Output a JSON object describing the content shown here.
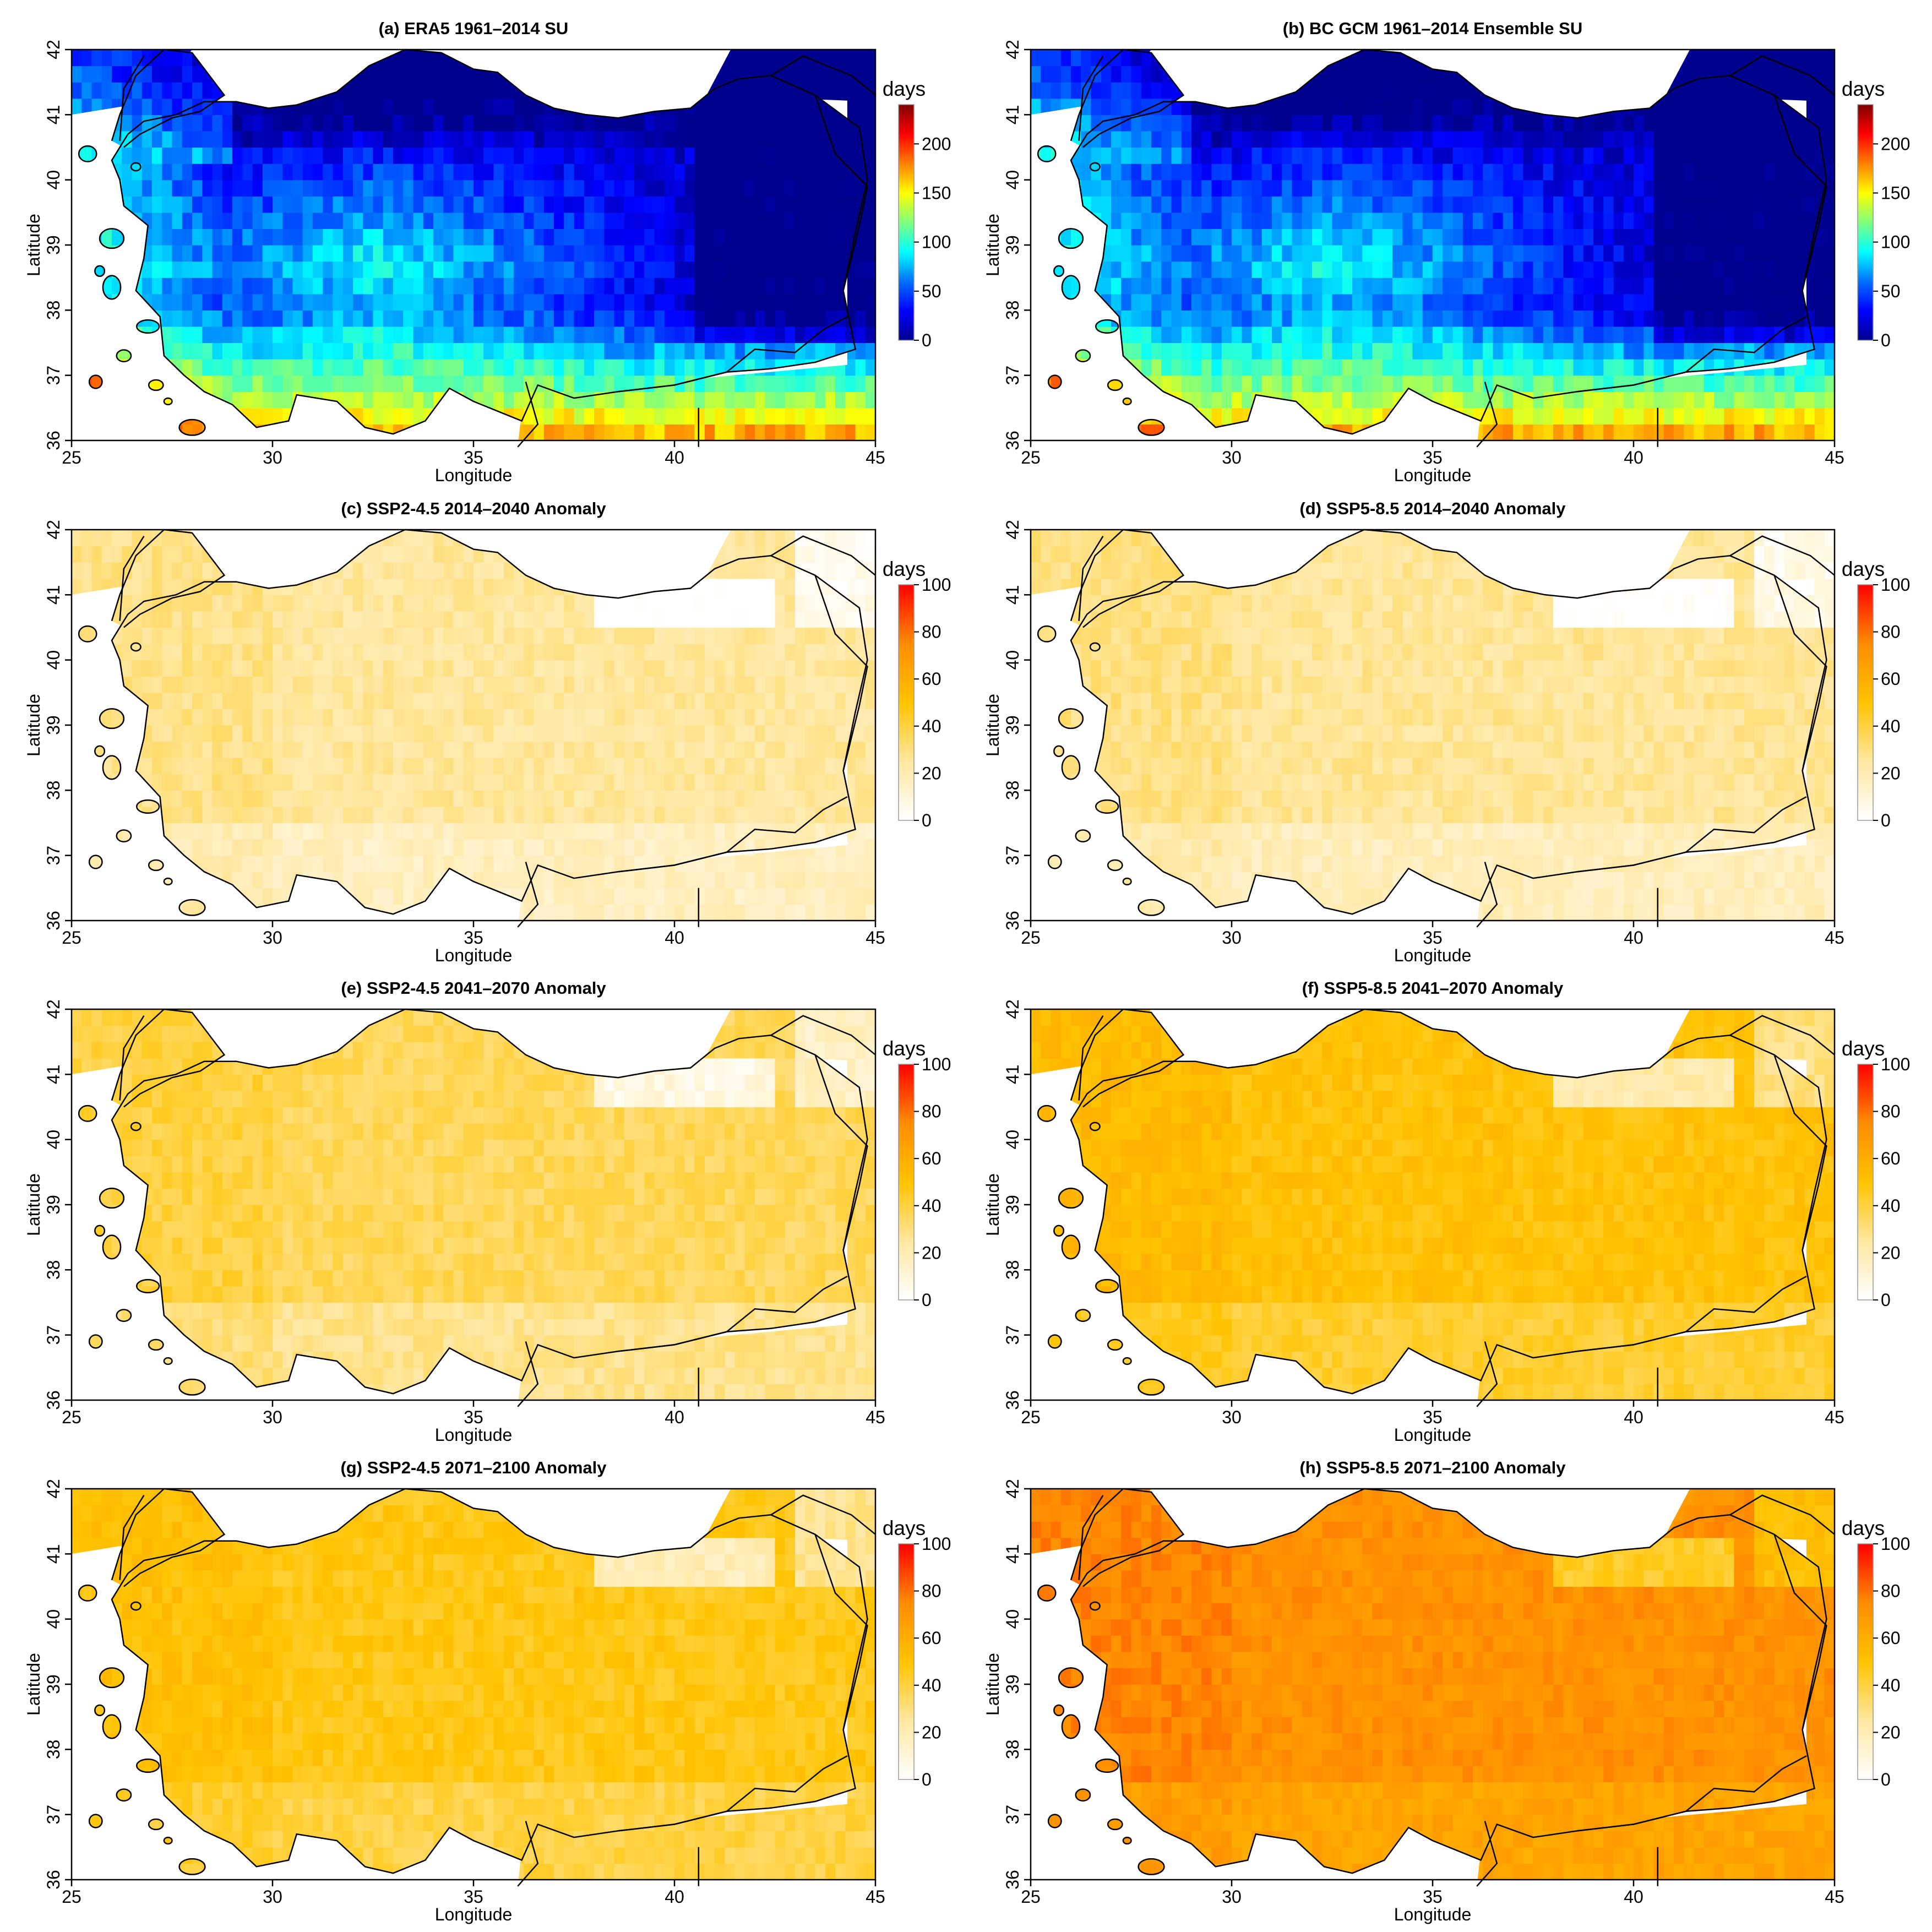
{
  "figure": {
    "panels": [
      {
        "id": "a",
        "title": "(a) ERA5 1961–2014 SU",
        "scale": "abs",
        "colorbar": {
          "unit": "days",
          "ticks": [
            "0",
            "50",
            "100",
            "150",
            "200"
          ],
          "max": 240,
          "colors": [
            "#00008f",
            "#0000ff",
            "#0070ff",
            "#00ffff",
            "#7fff7f",
            "#ffff00",
            "#ff8000",
            "#ff0000",
            "#800000"
          ]
        }
      },
      {
        "id": "b",
        "title": "(b) BC GCM 1961–2014 Ensemble SU",
        "scale": "abs",
        "colorbar": {
          "unit": "days",
          "ticks": [
            "0",
            "50",
            "100",
            "150",
            "200"
          ],
          "max": 240,
          "colors": [
            "#00008f",
            "#0000ff",
            "#0070ff",
            "#00ffff",
            "#7fff7f",
            "#ffff00",
            "#ff8000",
            "#ff0000",
            "#800000"
          ]
        }
      },
      {
        "id": "c",
        "title": "(c) SSP2-4.5 2014–2040 Anomaly",
        "scale": "anom",
        "level": 0.25,
        "colorbar": {
          "unit": "days",
          "ticks": [
            "0",
            "20",
            "40",
            "60",
            "80",
            "100"
          ],
          "max": 100,
          "colors": [
            "#ffffff",
            "#ffe7a0",
            "#ffc300",
            "#ff8c00",
            "#ff0000"
          ]
        }
      },
      {
        "id": "d",
        "title": "(d) SSP5-8.5 2014–2040 Anomaly",
        "scale": "anom",
        "level": 0.26,
        "colorbar": {
          "unit": "days",
          "ticks": [
            "0",
            "20",
            "40",
            "60",
            "80",
            "100"
          ],
          "max": 100,
          "colors": [
            "#ffffff",
            "#ffe7a0",
            "#ffc300",
            "#ff8c00",
            "#ff0000"
          ]
        }
      },
      {
        "id": "e",
        "title": "(e) SSP2-4.5 2041–2070 Anomaly",
        "scale": "anom",
        "level": 0.36,
        "colorbar": {
          "unit": "days",
          "ticks": [
            "0",
            "20",
            "40",
            "60",
            "80",
            "100"
          ],
          "max": 100,
          "colors": [
            "#ffffff",
            "#ffe7a0",
            "#ffc300",
            "#ff8c00",
            "#ff0000"
          ]
        }
      },
      {
        "id": "f",
        "title": "(f) SSP5-8.5 2041–2070 Anomaly",
        "scale": "anom",
        "level": 0.5,
        "colorbar": {
          "unit": "days",
          "ticks": [
            "0",
            "20",
            "40",
            "60",
            "80",
            "100"
          ],
          "max": 100,
          "colors": [
            "#ffffff",
            "#ffe7a0",
            "#ffc300",
            "#ff8c00",
            "#ff0000"
          ]
        }
      },
      {
        "id": "g",
        "title": "(g) SSP2-4.5 2071–2100 Anomaly",
        "scale": "anom",
        "level": 0.47,
        "colorbar": {
          "unit": "days",
          "ticks": [
            "0",
            "20",
            "40",
            "60",
            "80",
            "100"
          ],
          "max": 100,
          "colors": [
            "#ffffff",
            "#ffe7a0",
            "#ffc300",
            "#ff8c00",
            "#ff0000"
          ]
        }
      },
      {
        "id": "h",
        "title": "(h) SSP5-8.5 2071–2100 Anomaly",
        "scale": "anom",
        "level": 0.72,
        "colorbar": {
          "unit": "days",
          "ticks": [
            "0",
            "20",
            "40",
            "60",
            "80",
            "100"
          ],
          "max": 100,
          "colors": [
            "#ffffff",
            "#ffe7a0",
            "#ffc300",
            "#ff8c00",
            "#ff0000"
          ]
        }
      }
    ],
    "axes": {
      "xlabel": "Longitude",
      "ylabel": "Latitude",
      "xticks": [
        "25",
        "30",
        "35",
        "40",
        "45"
      ],
      "yticks": [
        "36",
        "37",
        "38",
        "39",
        "40",
        "41",
        "42"
      ],
      "xlim": [
        25,
        45
      ],
      "ylim": [
        36,
        42
      ]
    }
  }
}
